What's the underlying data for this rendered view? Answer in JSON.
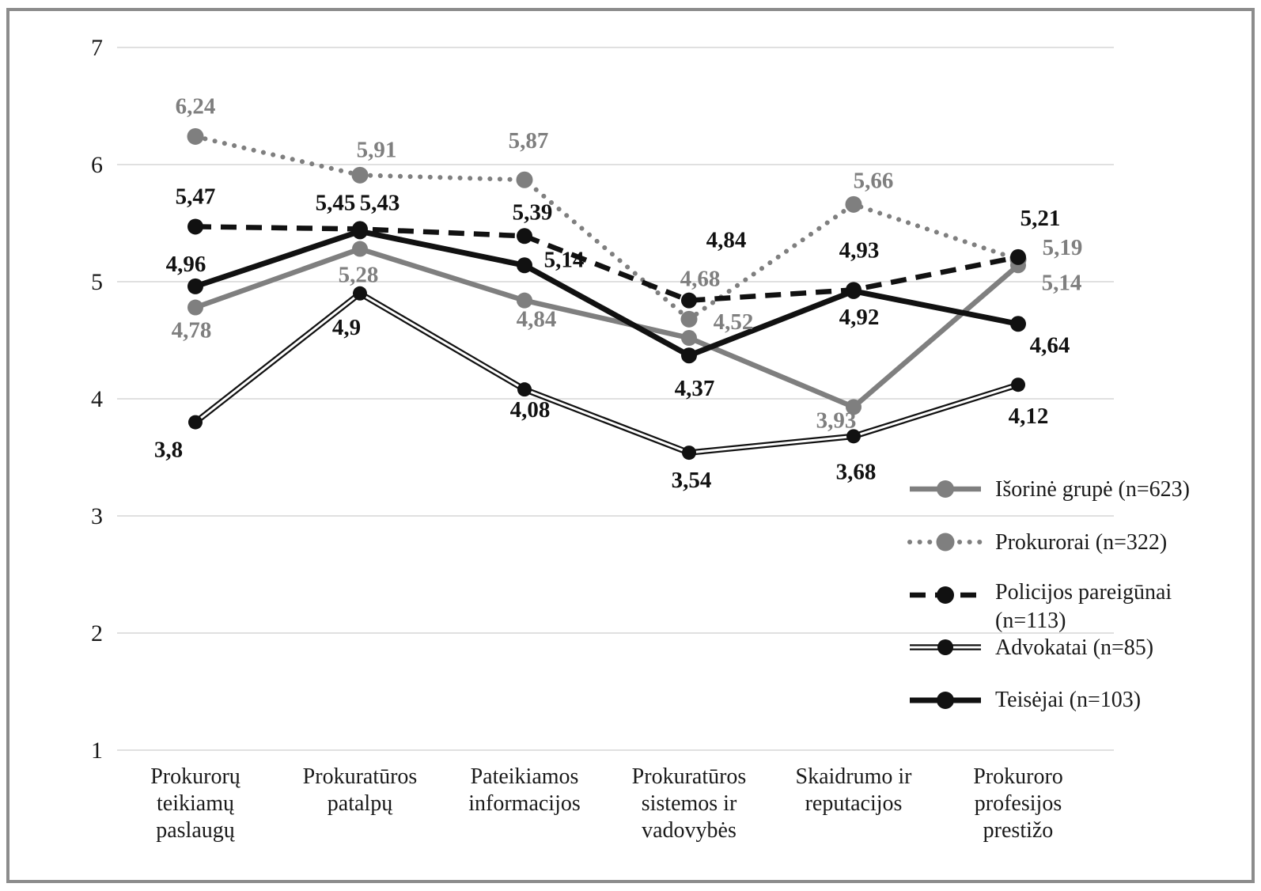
{
  "figure": {
    "background": "#ffffff",
    "frame_color": "#8c8c8c",
    "gridline_color": "#d6d6d6"
  },
  "chart_data": {
    "type": "line",
    "title": "",
    "xlabel": "",
    "ylabel": "",
    "grid": "horizontal",
    "legend_position": "inside-right-lower",
    "y_axis": {
      "min": 1,
      "max": 7,
      "ticks": [
        7,
        6,
        5,
        4,
        3,
        2,
        1
      ]
    },
    "categories": [
      {
        "label": "Prokurorų teikiamų paslaugų",
        "lines": [
          "Prokurorų",
          "teikiamų",
          "paslaugų"
        ]
      },
      {
        "label": "Prokuratūros patalpų",
        "lines": [
          "Prokuratūros",
          "patalpų"
        ]
      },
      {
        "label": "Pateikiamos informacijos",
        "lines": [
          "Pateikiamos",
          "informacijos"
        ]
      },
      {
        "label": "Prokuratūros sistemos ir vadovybės",
        "lines": [
          "Prokuratūros",
          "sistemos ir",
          "vadovybės"
        ]
      },
      {
        "label": "Skaidrumo ir reputacijos",
        "lines": [
          "Skaidrumo ir",
          "reputacijos"
        ]
      },
      {
        "label": "Prokuroro profesijos prestižo",
        "lines": [
          "Prokuroro",
          "profesijos",
          "prestižo"
        ]
      }
    ],
    "series": [
      {
        "id": "isorine",
        "name": "Išorinė grupė (n=623)",
        "legend_lines": [
          "Išorinė grupė (n=623)"
        ],
        "style": "solid",
        "color": "#7f7f7f",
        "values": [
          4.78,
          5.28,
          4.84,
          4.52,
          3.93,
          5.14
        ],
        "labels": [
          "4,78",
          "5,28",
          "4,84",
          "4,52",
          "3,93",
          "5,14"
        ]
      },
      {
        "id": "prokurorai",
        "name": "Prokurorai (n=322)",
        "legend_lines": [
          "Prokurorai (n=322)"
        ],
        "style": "dotted",
        "color": "#7f7f7f",
        "values": [
          6.24,
          5.91,
          5.87,
          4.68,
          5.66,
          5.19
        ],
        "labels": [
          "6,24",
          "5,91",
          "5,87",
          "4,68",
          "5,66",
          "5,19"
        ]
      },
      {
        "id": "policijos",
        "name": "Policijos pareigūnai (n=113)",
        "legend_lines": [
          "Policijos pareigūnai",
          "(n=113)"
        ],
        "style": "dashed",
        "color": "#111111",
        "values": [
          5.47,
          5.45,
          5.39,
          4.84,
          4.93,
          5.21
        ],
        "labels": [
          "5,47",
          "5,45",
          "5,39",
          "4,84",
          "4,93",
          "5,21"
        ]
      },
      {
        "id": "advokatai",
        "name": "Advokatai (n=85)",
        "legend_lines": [
          "Advokatai (n=85)"
        ],
        "style": "double",
        "color": "#111111",
        "values": [
          3.8,
          4.9,
          4.08,
          3.54,
          3.68,
          4.12
        ],
        "labels": [
          "3,8",
          "4,9",
          "4,08",
          "3,54",
          "3,68",
          "4,12"
        ]
      },
      {
        "id": "teisejai",
        "name": "Teisėjai (n=103)",
        "legend_lines": [
          "Teisėjai (n=103)"
        ],
        "style": "solid-thick",
        "color": "#111111",
        "values": [
          4.96,
          5.43,
          5.14,
          4.37,
          4.92,
          4.64
        ],
        "labels": [
          "4,96",
          "5,43",
          "5,14",
          "4,37",
          "4,92",
          "4,64"
        ]
      }
    ]
  }
}
